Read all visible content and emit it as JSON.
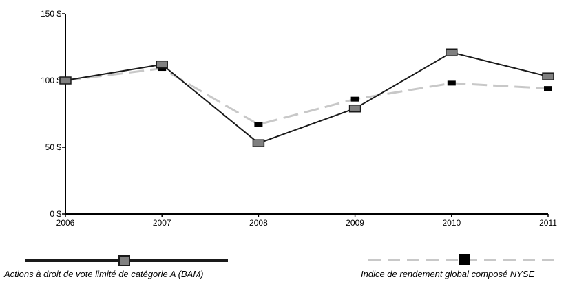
{
  "chart_data": {
    "type": "line",
    "x": [
      "2006",
      "2007",
      "2008",
      "2009",
      "2010",
      "2011"
    ],
    "y_ticks": [
      "0 $",
      "50 $",
      "100 $",
      "150 $"
    ],
    "ylim": [
      0,
      150
    ],
    "grid": false,
    "legend_position": "bottom",
    "series": [
      {
        "name": "Actions à droit de vote limité de catégorie A (BAM)",
        "values": [
          100,
          112,
          53,
          79,
          121,
          103
        ],
        "color": "#1a1a1a",
        "marker_color": "#808080",
        "line_style": "solid",
        "marker": "square"
      },
      {
        "name": "Indice de rendement global composé NYSE",
        "values": [
          100,
          109,
          67,
          86,
          98,
          94
        ],
        "color": "#c8c8c8",
        "marker_color": "#000000",
        "line_style": "dashed",
        "marker": "small-rect"
      }
    ]
  }
}
